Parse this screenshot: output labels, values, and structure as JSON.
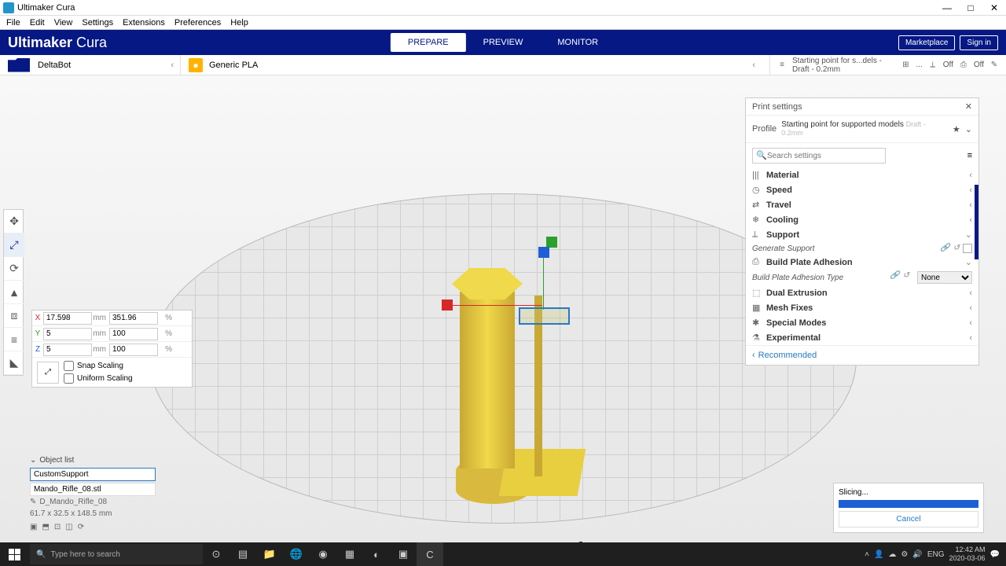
{
  "window": {
    "title": "Ultimaker Cura"
  },
  "menus": [
    "File",
    "Edit",
    "View",
    "Settings",
    "Extensions",
    "Preferences",
    "Help"
  ],
  "logo": {
    "bold": "Ultimaker",
    "light": " Cura"
  },
  "tabs": {
    "prepare": "PREPARE",
    "preview": "PREVIEW",
    "monitor": "MONITOR"
  },
  "header_buttons": {
    "marketplace": "Marketplace",
    "signin": "Sign in"
  },
  "stage": {
    "printer": "DeltaBot",
    "material": "Generic PLA",
    "profile_summary": "Starting point for s...dels - Draft - 0.2mm",
    "infill_tag": "⊞",
    "ellipsis": "...",
    "support_lbl": "Off",
    "adhesion_lbl": "Off",
    "pen": "✎"
  },
  "scale": {
    "x": {
      "mm": "17.598",
      "pct": "351.96"
    },
    "y": {
      "mm": "5",
      "pct": "100"
    },
    "z": {
      "mm": "5",
      "pct": "100"
    },
    "snap": "Snap Scaling",
    "uniform": "Uniform Scaling",
    "mm_unit": "mm",
    "pct_unit": "%"
  },
  "objects": {
    "heading": "Object list",
    "item1": "CustomSupport",
    "item2": "Mando_Rifle_08.stl",
    "group": "D_Mando_Rifle_08",
    "dims": "61.7 x 32.5 x 148.5 mm"
  },
  "settings": {
    "title": "Print settings",
    "profile_lbl": "Profile",
    "profile_val": "Starting point for supported models",
    "profile_sub": "Draft - 0.2mm",
    "search_ph": "Search settings",
    "cats": {
      "material": "Material",
      "speed": "Speed",
      "travel": "Travel",
      "cooling": "Cooling",
      "support": "Support",
      "bpa": "Build Plate Adhesion",
      "dual": "Dual Extrusion",
      "mesh": "Mesh Fixes",
      "special": "Special Modes",
      "exp": "Experimental"
    },
    "gen_support": "Generate Support",
    "bpa_type": "Build Plate Adhesion Type",
    "bpa_type_val": "None",
    "recommended": "Recommended"
  },
  "slicing": {
    "label": "Slicing...",
    "cancel": "Cancel"
  },
  "taskbar": {
    "search_ph": "Type here to search",
    "time": "12:42 AM",
    "date": "2020-03-06",
    "lang": "ENG"
  },
  "colors": {
    "x": "#d62728",
    "y": "#2ca02c",
    "z": "#1f5fd4"
  }
}
